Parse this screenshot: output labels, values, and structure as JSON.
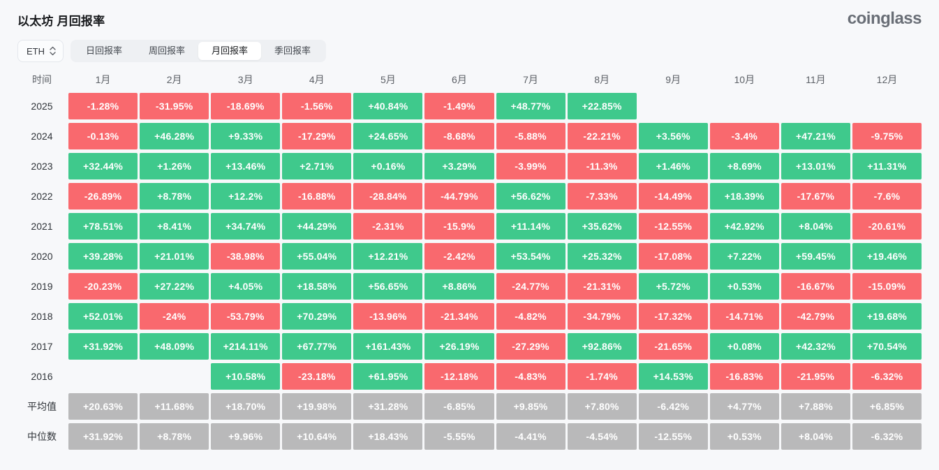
{
  "header": {
    "title": "以太坊 月回报率",
    "logo": "coinglass"
  },
  "controls": {
    "symbol_select": {
      "value": "ETH"
    },
    "tabs": [
      {
        "label": "日回报率",
        "active": false
      },
      {
        "label": "周回报率",
        "active": false
      },
      {
        "label": "月回报率",
        "active": true
      },
      {
        "label": "季回报率",
        "active": false
      }
    ]
  },
  "colors": {
    "positive": "#3fc98c",
    "negative": "#f9696e",
    "summary": "#b9b9ba"
  },
  "chart_data": {
    "type": "heatmap",
    "title": "以太坊 月回报率",
    "row_header": "时间",
    "columns": [
      "1月",
      "2月",
      "3月",
      "4月",
      "5月",
      "6月",
      "7月",
      "8月",
      "9月",
      "10月",
      "11月",
      "12月"
    ],
    "rows": [
      {
        "label": "2025",
        "values": [
          "-1.28%",
          "-31.95%",
          "-18.69%",
          "-1.56%",
          "+40.84%",
          "-1.49%",
          "+48.77%",
          "+22.85%",
          "",
          "",
          "",
          ""
        ]
      },
      {
        "label": "2024",
        "values": [
          "-0.13%",
          "+46.28%",
          "+9.33%",
          "-17.29%",
          "+24.65%",
          "-8.68%",
          "-5.88%",
          "-22.21%",
          "+3.56%",
          "-3.4%",
          "+47.21%",
          "-9.75%"
        ]
      },
      {
        "label": "2023",
        "values": [
          "+32.44%",
          "+1.26%",
          "+13.46%",
          "+2.71%",
          "+0.16%",
          "+3.29%",
          "-3.99%",
          "-11.3%",
          "+1.46%",
          "+8.69%",
          "+13.01%",
          "+11.31%"
        ]
      },
      {
        "label": "2022",
        "values": [
          "-26.89%",
          "+8.78%",
          "+12.2%",
          "-16.88%",
          "-28.84%",
          "-44.79%",
          "+56.62%",
          "-7.33%",
          "-14.49%",
          "+18.39%",
          "-17.67%",
          "-7.6%"
        ]
      },
      {
        "label": "2021",
        "values": [
          "+78.51%",
          "+8.41%",
          "+34.74%",
          "+44.29%",
          "-2.31%",
          "-15.9%",
          "+11.14%",
          "+35.62%",
          "-12.55%",
          "+42.92%",
          "+8.04%",
          "-20.61%"
        ]
      },
      {
        "label": "2020",
        "values": [
          "+39.28%",
          "+21.01%",
          "-38.98%",
          "+55.04%",
          "+12.21%",
          "-2.42%",
          "+53.54%",
          "+25.32%",
          "-17.08%",
          "+7.22%",
          "+59.45%",
          "+19.46%"
        ]
      },
      {
        "label": "2019",
        "values": [
          "-20.23%",
          "+27.22%",
          "+4.05%",
          "+18.58%",
          "+56.65%",
          "+8.86%",
          "-24.77%",
          "-21.31%",
          "+5.72%",
          "+0.53%",
          "-16.67%",
          "-15.09%"
        ]
      },
      {
        "label": "2018",
        "values": [
          "+52.01%",
          "-24%",
          "-53.79%",
          "+70.29%",
          "-13.96%",
          "-21.34%",
          "-4.82%",
          "-34.79%",
          "-17.32%",
          "-14.71%",
          "-42.79%",
          "+19.68%"
        ]
      },
      {
        "label": "2017",
        "values": [
          "+31.92%",
          "+48.09%",
          "+214.11%",
          "+67.77%",
          "+161.43%",
          "+26.19%",
          "-27.29%",
          "+92.86%",
          "-21.65%",
          "+0.08%",
          "+42.32%",
          "+70.54%"
        ]
      },
      {
        "label": "2016",
        "values": [
          "",
          "",
          "+10.58%",
          "-23.18%",
          "+61.95%",
          "-12.18%",
          "-4.83%",
          "-1.74%",
          "+14.53%",
          "-16.83%",
          "-21.95%",
          "-6.32%"
        ]
      }
    ],
    "summary_rows": [
      {
        "label": "平均值",
        "values": [
          "+20.63%",
          "+11.68%",
          "+18.70%",
          "+19.98%",
          "+31.28%",
          "-6.85%",
          "+9.85%",
          "+7.80%",
          "-6.42%",
          "+4.77%",
          "+7.88%",
          "+6.85%"
        ]
      },
      {
        "label": "中位数",
        "values": [
          "+31.92%",
          "+8.78%",
          "+9.96%",
          "+10.64%",
          "+18.43%",
          "-5.55%",
          "-4.41%",
          "-4.54%",
          "-12.55%",
          "+0.53%",
          "+8.04%",
          "-6.32%"
        ]
      }
    ]
  }
}
